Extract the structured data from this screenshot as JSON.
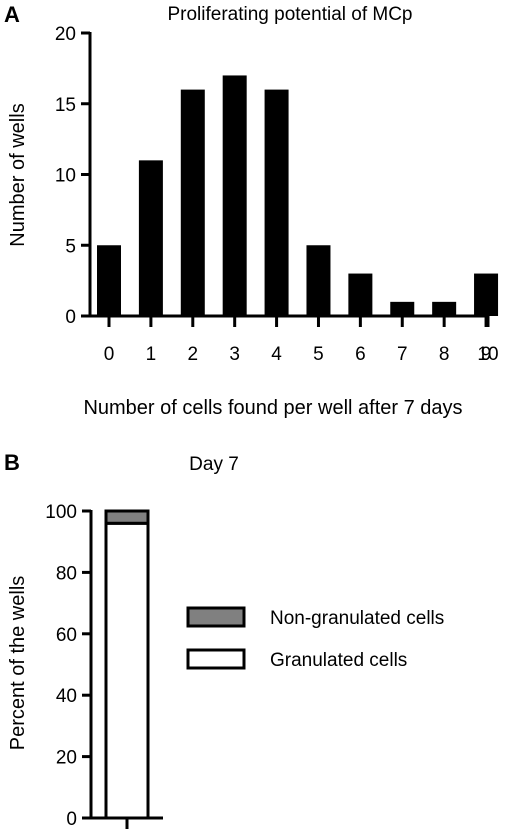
{
  "figure": {
    "panel_a_label": "A",
    "panel_b_label": "B"
  },
  "chart_data": [
    {
      "type": "bar",
      "title": "Proliferating potential of MCp",
      "xlabel": "Number of cells found per well after 7 days",
      "ylabel": "Number of wells",
      "categories": [
        0,
        1,
        2,
        3,
        4,
        5,
        6,
        7,
        8,
        9
      ],
      "x_ticks": [
        "0",
        "1",
        "2",
        "3",
        "4",
        "5",
        "6",
        "7",
        "8",
        "9",
        "10"
      ],
      "values": [
        5,
        11,
        16,
        17,
        16,
        5,
        3,
        1,
        1,
        3
      ],
      "ylim": [
        0,
        20
      ],
      "y_ticks": [
        "0",
        "5",
        "10",
        "15",
        "20"
      ],
      "bar_color": "#000000",
      "grid": false
    },
    {
      "type": "bar",
      "stacked": true,
      "title": "Day 7",
      "xlabel": "",
      "ylabel": "Percent of the wells",
      "ylim": [
        0,
        100
      ],
      "y_ticks": [
        "0",
        "20",
        "40",
        "60",
        "80",
        "100"
      ],
      "series": [
        {
          "name": "Granulated cells",
          "values": [
            96
          ],
          "color": "#ffffff"
        },
        {
          "name": "Non-granulated cells",
          "values": [
            4
          ],
          "color": "#808080"
        }
      ],
      "legend_order": [
        "Non-granulated cells",
        "Granulated cells"
      ],
      "legend_position": "right",
      "grid": false
    }
  ]
}
